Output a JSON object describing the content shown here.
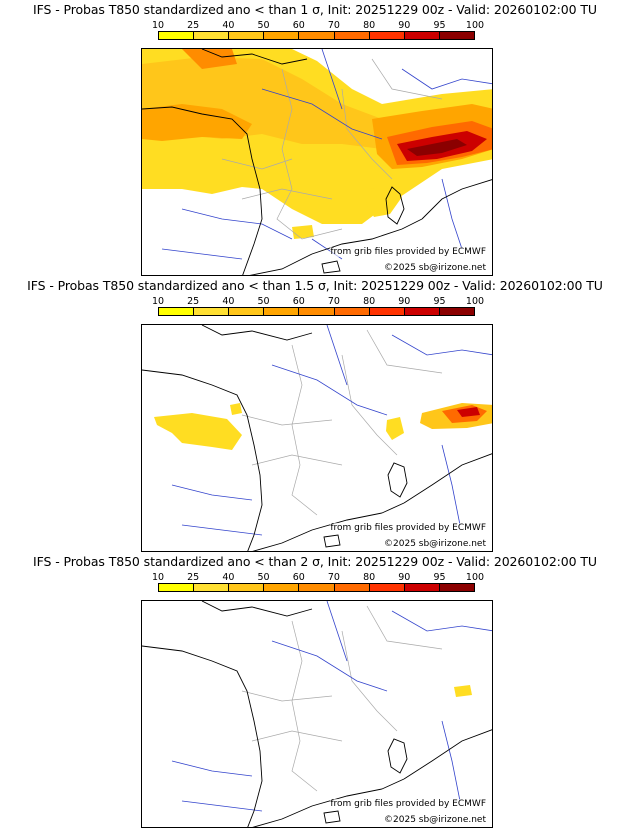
{
  "colorbar": {
    "ticks": [
      "10",
      "25",
      "40",
      "50",
      "60",
      "70",
      "80",
      "90",
      "95",
      "100"
    ],
    "colors": [
      "#ffff00",
      "#ffe033",
      "#ffc61a",
      "#ffa500",
      "#ff8c00",
      "#ff6a00",
      "#ff3300",
      "#cc0000",
      "#8b0000",
      "#4a0000"
    ]
  },
  "map_colors": {
    "land_outline": "#000000",
    "rivers": "#3344cc",
    "borders": "#aaaaaa"
  },
  "panels": [
    {
      "title": "IFS - Probas T850  standardized ano < than 1 σ, Init: 20251229 00z - Valid: 20260102:00 TU",
      "source_credit": "from grib files provided by ECMWF",
      "copyright": "©2025 sb@irizone.net"
    },
    {
      "title": "IFS - Probas T850  standardized ano < than 1.5 σ, Init: 20251229 00z - Valid: 20260102:00 TU",
      "source_credit": "from grib files provided by ECMWF",
      "copyright": "©2025 sb@irizone.net"
    },
    {
      "title": "IFS - Probas T850  standardized ano < than 2 σ, Init: 20251229 00z - Valid: 20260102:00 TU",
      "source_credit": "from grib files provided by ECMWF",
      "copyright": "©2025 sb@irizone.net"
    }
  ]
}
